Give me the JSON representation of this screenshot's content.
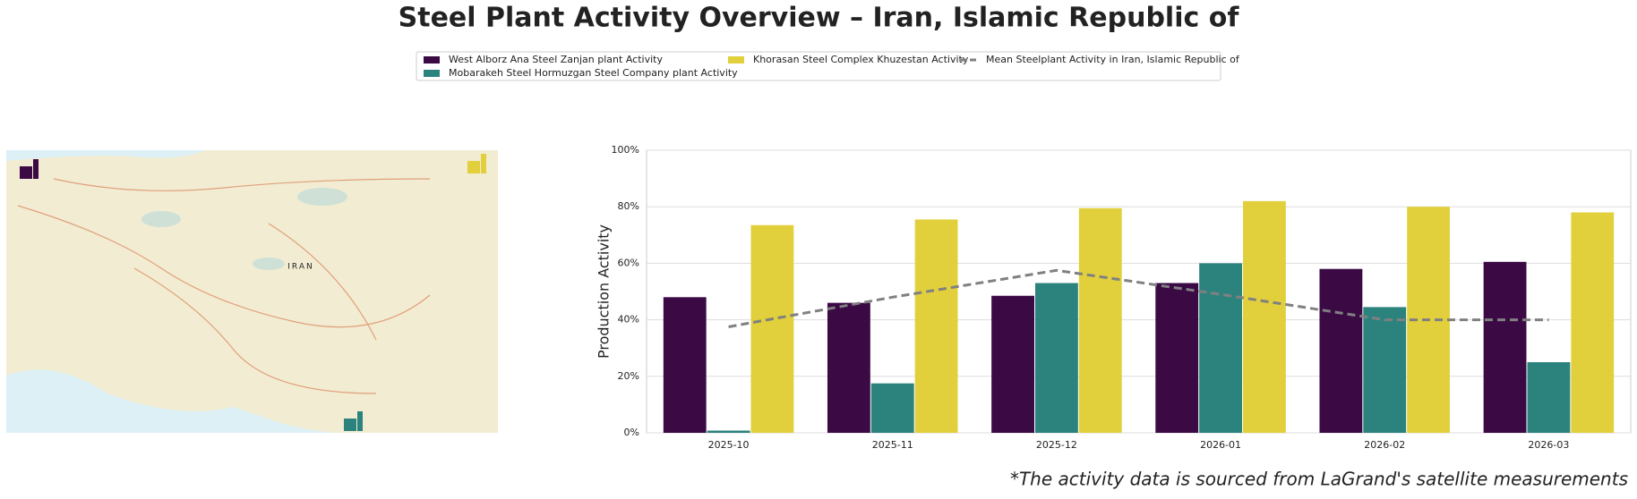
{
  "chart_data": {
    "type": "bar",
    "title": "Steel Plant Activity Overview – Iran, Islamic Republic of",
    "footnote": "*The activity data is sourced from LaGrand's satellite measurements",
    "ylabel": "Production Activity",
    "categories": [
      "2025-10",
      "2025-11",
      "2025-12",
      "2026-01",
      "2026-02",
      "2026-03"
    ],
    "series": [
      {
        "name": "West Alborz Ana Steel Zanjan plant Activity",
        "type": "bar",
        "color": "#3b0a45",
        "values": [
          48,
          46,
          48.5,
          53,
          58,
          60.5
        ]
      },
      {
        "name": "Mobarakeh Steel Hormuzgan Steel Company plant Activity",
        "type": "bar",
        "color": "#2c837e",
        "values": [
          0.8,
          17.5,
          53,
          60,
          44.5,
          25
        ]
      },
      {
        "name": "Khorasan Steel Complex Khuzestan Activity",
        "type": "bar",
        "color": "#e1d03c",
        "values": [
          73.5,
          75.5,
          79.5,
          82,
          80,
          78
        ]
      },
      {
        "name": "Mean Steelplant Activity in Iran, Islamic Republic of",
        "type": "line",
        "color": "#808080",
        "values": [
          37.5,
          48,
          57.5,
          49,
          40,
          40
        ]
      }
    ],
    "ylim": [
      0,
      100
    ],
    "yticks": [
      {
        "value": 0,
        "label": "0%"
      },
      {
        "value": 20,
        "label": "20%"
      },
      {
        "value": 40,
        "label": "40%"
      },
      {
        "value": 60,
        "label": "60%"
      },
      {
        "value": 80,
        "label": "80%"
      },
      {
        "value": 100,
        "label": "100%"
      }
    ],
    "grid": true,
    "legend_loc": "upper center"
  },
  "map": {
    "label": "IRAN"
  }
}
